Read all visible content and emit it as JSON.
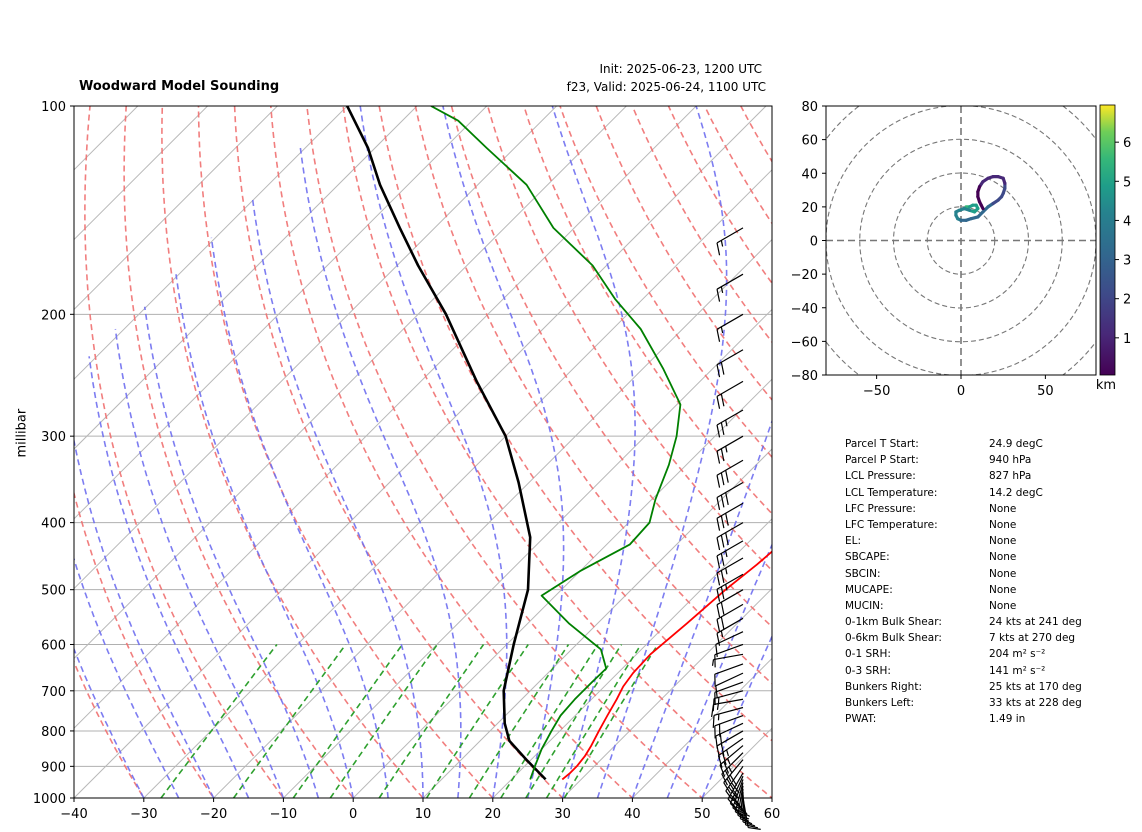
{
  "header": {
    "title": "Woodward Model Sounding",
    "init": "Init: 2025-06-23, 1200 UTC",
    "valid": "f23, Valid: 2025-06-24, 1100 UTC"
  },
  "chart_data": [
    {
      "type": "line",
      "name": "skew-t",
      "ylabel": "millibar",
      "y_scale": "log",
      "xlim": [
        -40,
        60
      ],
      "ylim": [
        1000,
        100
      ],
      "x_ticks": [
        "−40",
        "−30",
        "−20",
        "−10",
        "0",
        "10",
        "20",
        "30",
        "40",
        "50",
        "60"
      ],
      "y_ticks": [
        "1000",
        "900",
        "800",
        "700",
        "600",
        "500",
        "400",
        "300",
        "200",
        "100"
      ],
      "series": [
        {
          "color": "#ff0000",
          "pressure": [
            940,
            920,
            900,
            870,
            840,
            800,
            760,
            720,
            690,
            660,
            620,
            560,
            500,
            460,
            420,
            380,
            340,
            300,
            260,
            230,
            200,
            180,
            165,
            150,
            135,
            120,
            108,
            100
          ],
          "temperature": [
            27.3,
            27.5,
            27.5,
            27.2,
            26.6,
            25.6,
            24.6,
            23.6,
            22.7,
            22.2,
            22.0,
            22.8,
            23.5,
            24.4,
            25.0,
            24.8,
            23.9,
            21.8,
            17.8,
            14.3,
            10.2,
            4.5,
            -2.3,
            -9.8,
            -17.2,
            -23.8,
            -28.0,
            -28.8
          ]
        },
        {
          "color": "#000000",
          "pressure": [
            940,
            880,
            827,
            780,
            700,
            600,
            500,
            420,
            350,
            300,
            250,
            200,
            170,
            150,
            130,
            115,
            100
          ],
          "temperature": [
            24.9,
            19.3,
            14.2,
            11.0,
            6.2,
            1.0,
            -4.8,
            -12.0,
            -21.5,
            -30.0,
            -42.0,
            -56.0,
            -67.0,
            -75.0,
            -84.0,
            -91.0,
            -100.0
          ]
        },
        {
          "color": "#008000",
          "pressure": [
            940,
            900,
            850,
            800,
            760,
            720,
            680,
            650,
            610,
            560,
            510,
            470,
            430,
            400,
            370,
            330,
            300,
            270,
            240,
            210,
            190,
            170,
            150,
            130,
            115,
            105,
            100
          ],
          "temperature": [
            22.7,
            21.5,
            20.0,
            18.8,
            17.9,
            17.6,
            17.6,
            17.7,
            14.2,
            6.0,
            -2.0,
            0.0,
            3.3,
            3.0,
            0.5,
            -2.5,
            -5.5,
            -9.5,
            -17.0,
            -26.0,
            -34.0,
            -42.0,
            -53.0,
            -63.0,
            -74.0,
            -82.0,
            -88.0
          ]
        }
      ]
    },
    {
      "type": "line",
      "name": "hodograph",
      "xlim": [
        -80,
        80
      ],
      "ylim": [
        -80,
        80
      ],
      "x_ticks": [
        "−50",
        "0",
        "50"
      ],
      "y_ticks": [
        "80",
        "60",
        "40",
        "20",
        "0",
        "−20",
        "−40",
        "−60",
        "−80"
      ],
      "u": [
        3,
        5,
        7,
        9,
        10,
        8,
        5,
        2,
        -1,
        -3,
        -3,
        -2,
        0,
        3,
        6,
        10,
        13,
        16,
        19,
        22,
        24,
        25,
        26,
        26,
        25,
        22,
        19,
        16,
        13,
        11,
        10,
        10,
        11,
        12,
        13
      ],
      "v": [
        20,
        20,
        21,
        21,
        19,
        17,
        18,
        19,
        18,
        17,
        15,
        13,
        12,
        12,
        13,
        14,
        17,
        20,
        22,
        24,
        26,
        28,
        31,
        34,
        37,
        38,
        38,
        37,
        35,
        32,
        29,
        26,
        23,
        21,
        19
      ],
      "colorbar_label": "km",
      "colorbar_ticks": [
        "6",
        "5",
        "4",
        "3",
        "2",
        "1"
      ]
    }
  ],
  "barbs": {
    "pressure": [
      1000,
      990,
      980,
      970,
      960,
      950,
      940,
      930,
      920,
      900,
      880,
      860,
      840,
      820,
      800,
      780,
      760,
      740,
      720,
      700,
      680,
      660,
      640,
      620,
      600,
      575,
      550,
      525,
      500,
      475,
      450,
      425,
      400,
      375,
      350,
      325,
      300,
      275,
      250,
      225,
      200,
      175,
      150
    ],
    "speed_kt": [
      10,
      12,
      14,
      16,
      18,
      20,
      22,
      24,
      25,
      28,
      28,
      26,
      25,
      24,
      22,
      20,
      18,
      16,
      15,
      14,
      12,
      10,
      8,
      5,
      8,
      12,
      14,
      18,
      22,
      24,
      25,
      26,
      28,
      30,
      30,
      28,
      26,
      24,
      22,
      18,
      15,
      15,
      15
    ],
    "direction_deg": [
      170,
      175,
      180,
      185,
      190,
      195,
      200,
      205,
      210,
      215,
      220,
      225,
      230,
      235,
      240,
      245,
      250,
      255,
      260,
      255,
      250,
      245,
      250,
      260,
      250,
      245,
      240,
      240,
      240,
      240,
      240,
      240,
      240,
      240,
      240,
      240,
      240,
      240,
      240,
      240,
      240,
      240,
      240
    ]
  },
  "parameters": [
    {
      "key": "Parcel T Start:",
      "value": "24.9 degC"
    },
    {
      "key": "Parcel P Start:",
      "value": "940 hPa"
    },
    {
      "key": "LCL Pressure:",
      "value": "827 hPa"
    },
    {
      "key": "LCL Temperature:",
      "value": "14.2 degC"
    },
    {
      "key": "LFC Pressure:",
      "value": "None"
    },
    {
      "key": "LFC Temperature:",
      "value": "None"
    },
    {
      "key": "EL:",
      "value": "None"
    },
    {
      "key": "SBCAPE:",
      "value": "None"
    },
    {
      "key": "SBCIN:",
      "value": "None"
    },
    {
      "key": "MUCAPE:",
      "value": "None"
    },
    {
      "key": "MUCIN:",
      "value": "None"
    },
    {
      "key": "0-1km Bulk Shear:",
      "value": "24 kts at 241 deg"
    },
    {
      "key": "0-6km Bulk Shear:",
      "value": "7 kts at 270 deg"
    },
    {
      "key": "0-1 SRH:",
      "value": "204 m² s⁻²"
    },
    {
      "key": "0-3 SRH:",
      "value": "141 m² s⁻²"
    },
    {
      "key": "Bunkers Right:",
      "value": "25 kts at 170 deg"
    },
    {
      "key": "Bunkers Left:",
      "value": "33 kts at 228 deg"
    },
    {
      "key": "PWAT:",
      "value": "1.49 in"
    }
  ]
}
